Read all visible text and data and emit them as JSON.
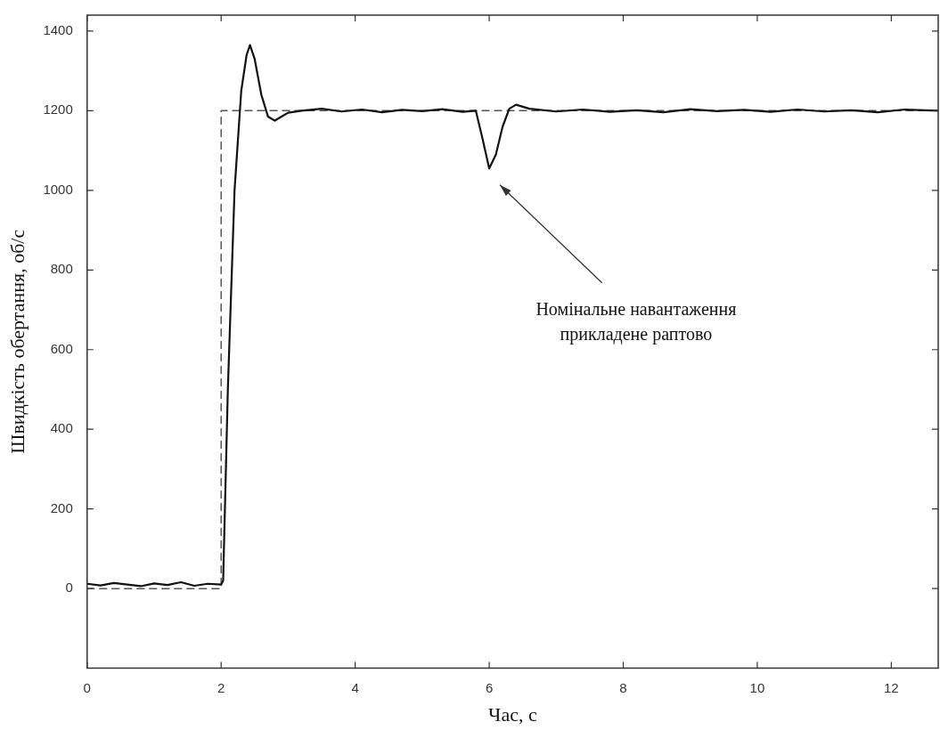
{
  "chart_data": {
    "type": "line",
    "xlabel": "Час, с",
    "ylabel": "Швидкість обертання, об/с",
    "xlim": [
      0,
      12.7
    ],
    "ylim": [
      -200,
      1440
    ],
    "xticks": [
      0,
      2,
      4,
      6,
      8,
      10,
      12
    ],
    "yticks": [
      0,
      200,
      400,
      600,
      800,
      1000,
      1200,
      1400
    ],
    "grid": false,
    "marker": "none",
    "series": [
      {
        "color": "#111111",
        "line_style": "solid",
        "x": [
          0,
          0.2,
          0.4,
          0.6,
          0.8,
          1.0,
          1.2,
          1.4,
          1.6,
          1.8,
          2.0,
          2.03,
          2.1,
          2.2,
          2.3,
          2.38,
          2.43,
          2.5,
          2.6,
          2.7,
          2.8,
          2.9,
          3.0,
          3.2,
          3.5,
          3.8,
          4.1,
          4.4,
          4.7,
          5.0,
          5.3,
          5.6,
          5.8,
          5.9,
          6.0,
          6.1,
          6.2,
          6.3,
          6.4,
          6.6,
          7.0,
          7.4,
          7.8,
          8.2,
          8.6,
          9.0,
          9.4,
          9.8,
          10.2,
          10.6,
          11.0,
          11.4,
          11.8,
          12.2,
          12.7
        ],
        "values": [
          12,
          8,
          14,
          10,
          6,
          13,
          9,
          16,
          7,
          12,
          10,
          20,
          500,
          1000,
          1250,
          1340,
          1365,
          1330,
          1240,
          1185,
          1175,
          1185,
          1195,
          1200,
          1205,
          1198,
          1203,
          1196,
          1202,
          1199,
          1204,
          1197,
          1200,
          1130,
          1055,
          1090,
          1160,
          1205,
          1215,
          1205,
          1198,
          1203,
          1197,
          1201,
          1196,
          1204,
          1199,
          1202,
          1197,
          1203,
          1198,
          1201,
          1196,
          1203,
          1200
        ]
      },
      {
        "color": "#555555",
        "line_style": "dashed",
        "x": [
          0,
          2,
          2,
          12.7
        ],
        "values": [
          0,
          0,
          1200,
          1200
        ]
      }
    ],
    "annotations": [
      "Номінальне навантаження прикладене раптово"
    ]
  }
}
